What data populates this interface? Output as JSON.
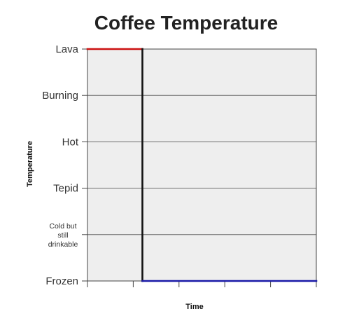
{
  "chart_data": {
    "type": "line",
    "title": "Coffee Temperature",
    "xlabel": "Time",
    "ylabel": "Temperature",
    "y_categories": [
      "Frozen",
      "Cold but still drinkable",
      "Tepid",
      "Hot",
      "Burning",
      "Lava"
    ],
    "y_category_lines": {
      "Frozen": [
        "Frozen"
      ],
      "Cold but still drinkable": [
        "Cold but",
        "still",
        "drinkable"
      ],
      "Tepid": [
        "Tepid"
      ],
      "Hot": [
        "Hot"
      ],
      "Burning": [
        "Burning"
      ],
      "Lava": [
        "Lava"
      ]
    },
    "xlim": [
      0,
      5
    ],
    "x_ticks": [
      0,
      1,
      2,
      3,
      4,
      5
    ],
    "grid": "horizontal",
    "series": [
      {
        "color": "#cc1111",
        "points": [
          [
            0,
            "Lava"
          ],
          [
            1.2,
            "Lava"
          ]
        ]
      },
      {
        "color": "#111111",
        "points": [
          [
            1.2,
            "Lava"
          ],
          [
            1.2,
            "Frozen"
          ]
        ]
      },
      {
        "color": "#1a1aa8",
        "points": [
          [
            1.2,
            "Frozen"
          ],
          [
            5,
            "Frozen"
          ]
        ]
      }
    ],
    "colors": {
      "plot_bg": "#eeeeee",
      "grid": "#444444",
      "frame": "#444444"
    }
  }
}
